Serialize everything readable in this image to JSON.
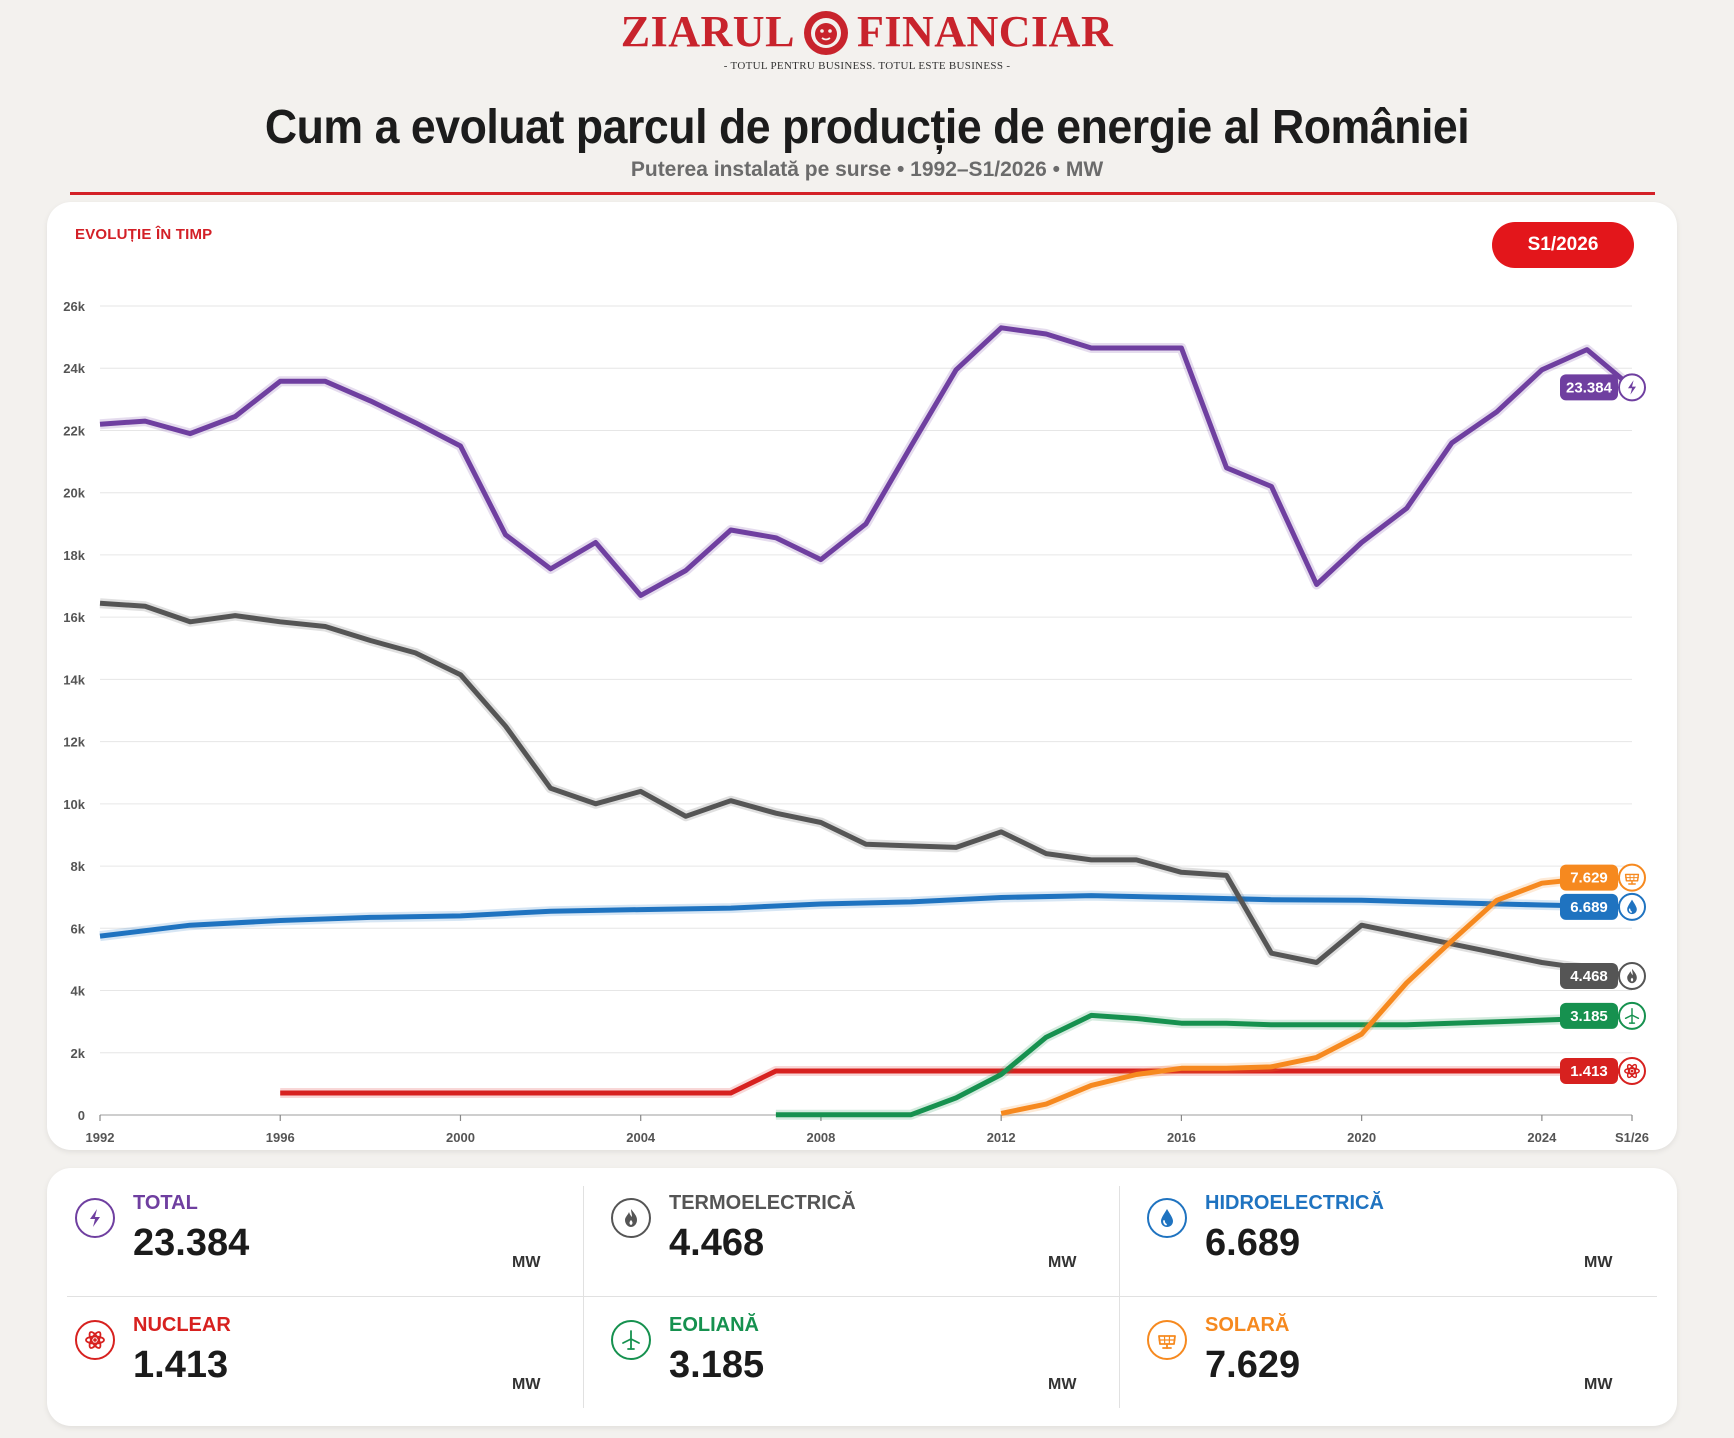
{
  "header": {
    "brand_left": "ZIARUL",
    "brand_right": "FINANCIAR",
    "tagline": "- TOTUL PENTRU BUSINESS. TOTUL ESTE BUSINESS -",
    "title": "Cum a evoluat parcul de producție de energie al României",
    "subtitle": "Puterea instalată pe surse  •  1992–S1/2026  •  MW"
  },
  "chart_panel": {
    "section_label": "EVOLUȚIE ÎN TIMP",
    "period_button": "S1/2026"
  },
  "chart_data": {
    "type": "line",
    "ylim": [
      0,
      26000
    ],
    "yticks": [
      0,
      2000,
      4000,
      6000,
      8000,
      10000,
      12000,
      14000,
      16000,
      18000,
      20000,
      22000,
      24000,
      26000
    ],
    "ytick_labels": [
      "0",
      "2k",
      "4k",
      "6k",
      "8k",
      "10k",
      "12k",
      "14k",
      "16k",
      "18k",
      "20k",
      "22k",
      "24k",
      "26k"
    ],
    "xlim": [
      1992,
      2026
    ],
    "xticks": [
      1992,
      1996,
      2000,
      2004,
      2008,
      2012,
      2016,
      2020,
      2024,
      2026
    ],
    "xtick_labels": [
      "1992",
      "1996",
      "2000",
      "2004",
      "2008",
      "2012",
      "2016",
      "2020",
      "2024",
      "S1/26"
    ],
    "grid": true,
    "series": [
      {
        "name": "TOTAL",
        "color": "#6f3fa0",
        "icon": "bolt-icon",
        "end_label": "23.384",
        "x": [
          1992,
          1993,
          1994,
          1995,
          1996,
          1997,
          1998,
          1999,
          2000,
          2001,
          2002,
          2003,
          2004,
          2005,
          2006,
          2007,
          2008,
          2009,
          2010,
          2011,
          2012,
          2013,
          2014,
          2015,
          2016,
          2017,
          2018,
          2019,
          2020,
          2021,
          2022,
          2023,
          2024,
          2025,
          2026
        ],
        "y": [
          22200,
          22300,
          21900,
          22450,
          23580,
          23580,
          22950,
          22250,
          21500,
          18650,
          17550,
          18400,
          16700,
          17500,
          18800,
          18550,
          17850,
          19000,
          21500,
          23950,
          25300,
          25100,
          24650,
          24650,
          24650,
          20800,
          20200,
          17050,
          18400,
          19500,
          21600,
          22600,
          23950,
          24600,
          23384
        ]
      },
      {
        "name": "TERMOELECTRICĂ",
        "color": "#555555",
        "icon": "flame-icon",
        "end_label": "4.468",
        "x": [
          1992,
          1993,
          1994,
          1995,
          1996,
          1997,
          1998,
          1999,
          2000,
          2001,
          2002,
          2003,
          2004,
          2005,
          2006,
          2007,
          2008,
          2009,
          2010,
          2011,
          2012,
          2013,
          2014,
          2015,
          2016,
          2017,
          2018,
          2019,
          2020,
          2021,
          2022,
          2023,
          2024,
          2025,
          2026
        ],
        "y": [
          16450,
          16350,
          15850,
          16050,
          15850,
          15700,
          15250,
          14850,
          14150,
          12500,
          10500,
          10000,
          10400,
          9600,
          10100,
          9700,
          9400,
          8700,
          8650,
          8600,
          9100,
          8400,
          8200,
          8200,
          7800,
          7700,
          5200,
          4900,
          6100,
          5800,
          5500,
          5200,
          4900,
          4700,
          4468
        ]
      },
      {
        "name": "HIDROELECTRICĂ",
        "color": "#1f73c0",
        "icon": "drop-icon",
        "end_label": "6.689",
        "x": [
          1992,
          1994,
          1996,
          1998,
          2000,
          2002,
          2004,
          2006,
          2008,
          2010,
          2012,
          2014,
          2016,
          2018,
          2020,
          2022,
          2024,
          2026
        ],
        "y": [
          5750,
          6100,
          6250,
          6350,
          6400,
          6550,
          6600,
          6650,
          6780,
          6850,
          6990,
          7050,
          6990,
          6920,
          6900,
          6820,
          6750,
          6689
        ]
      },
      {
        "name": "NUCLEAR",
        "color": "#d7211f",
        "icon": "atom-icon",
        "end_label": "1.413",
        "x": [
          1996,
          2006,
          2007,
          2026
        ],
        "y": [
          706,
          706,
          1413,
          1413
        ]
      },
      {
        "name": "EOLIANĂ",
        "color": "#16914f",
        "icon": "turbine-icon",
        "end_label": "3.185",
        "x": [
          2007,
          2008,
          2009,
          2010,
          2011,
          2012,
          2013,
          2014,
          2015,
          2016,
          2017,
          2018,
          2019,
          2020,
          2021,
          2022,
          2023,
          2024,
          2025,
          2026
        ],
        "y": [
          10,
          10,
          10,
          10,
          550,
          1300,
          2500,
          3200,
          3100,
          2950,
          2950,
          2900,
          2900,
          2900,
          2900,
          2950,
          3000,
          3050,
          3100,
          3185
        ]
      },
      {
        "name": "SOLARĂ",
        "color": "#f6891f",
        "icon": "solar-panel-icon",
        "end_label": "7.629",
        "x": [
          2012,
          2013,
          2014,
          2015,
          2016,
          2017,
          2018,
          2019,
          2020,
          2021,
          2022,
          2023,
          2024,
          2025,
          2026
        ],
        "y": [
          50,
          350,
          950,
          1300,
          1500,
          1500,
          1550,
          1850,
          2600,
          4250,
          5600,
          6900,
          7450,
          7600,
          7629
        ]
      }
    ]
  },
  "stats": [
    {
      "label": "TOTAL",
      "value": "23.384",
      "unit": "MW",
      "color": "#6f3fa0",
      "icon": "bolt-icon"
    },
    {
      "label": "TERMOELECTRICĂ",
      "value": "4.468",
      "unit": "MW",
      "color": "#555555",
      "icon": "flame-icon"
    },
    {
      "label": "HIDROELECTRICĂ",
      "value": "6.689",
      "unit": "MW",
      "color": "#1f73c0",
      "icon": "drop-icon"
    },
    {
      "label": "NUCLEAR",
      "value": "1.413",
      "unit": "MW",
      "color": "#d7211f",
      "icon": "atom-icon"
    },
    {
      "label": "EOLIANĂ",
      "value": "3.185",
      "unit": "MW",
      "color": "#16914f",
      "icon": "turbine-icon"
    },
    {
      "label": "SOLARĂ",
      "value": "7.629",
      "unit": "MW",
      "color": "#f6891f",
      "icon": "solar-panel-icon"
    }
  ]
}
